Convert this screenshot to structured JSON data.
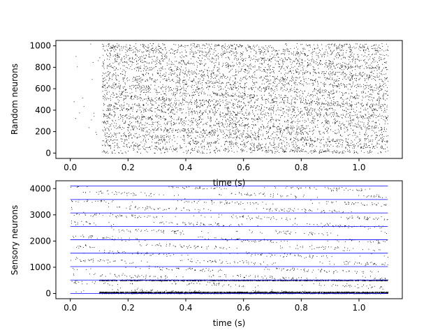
{
  "chart_data": [
    {
      "type": "scatter",
      "subtype": "raster",
      "title": "",
      "xlabel": "time (s)",
      "ylabel": "Random neurons",
      "xlim": [
        -0.05,
        1.15
      ],
      "ylim": [
        -50,
        1050
      ],
      "xticks": [
        0.0,
        0.2,
        0.4,
        0.6,
        0.8,
        1.0
      ],
      "xtick_labels": [
        "0.0",
        "0.2",
        "0.4",
        "0.6",
        "0.8",
        "1.0"
      ],
      "yticks": [
        0,
        200,
        400,
        600,
        800,
        1000
      ],
      "ytick_labels": [
        "0",
        "200",
        "400",
        "600",
        "800",
        "1000"
      ],
      "grid": false,
      "series": [
        {
          "color": "#000000",
          "n_neurons": 1024,
          "sparse_t_range": [
            0.0,
            0.11
          ],
          "dense_t_range": [
            0.11,
            1.1
          ]
        }
      ]
    },
    {
      "type": "scatter",
      "subtype": "raster",
      "title": "",
      "xlabel": "time (s)",
      "ylabel": "Sensory neurons",
      "xlim": [
        -0.05,
        1.15
      ],
      "ylim": [
        -200,
        4300
      ],
      "xticks": [
        0.0,
        0.2,
        0.4,
        0.6,
        0.8,
        1.0
      ],
      "xtick_labels": [
        "0.0",
        "0.2",
        "0.4",
        "0.6",
        "0.8",
        "1.0"
      ],
      "yticks": [
        0,
        1000,
        2000,
        3000,
        4000
      ],
      "ytick_labels": [
        "0",
        "1000",
        "2000",
        "3000",
        "4000"
      ],
      "grid": false,
      "series": [
        {
          "color": "#000000",
          "n_neurons": 4096,
          "t_range": [
            0.0,
            1.1
          ]
        },
        {
          "color": "#0000ff",
          "line_y": [
            0,
            512,
            1024,
            1536,
            2048,
            2560,
            3072,
            3584,
            4096
          ],
          "t_range": [
            0.0,
            1.1
          ]
        }
      ]
    }
  ]
}
